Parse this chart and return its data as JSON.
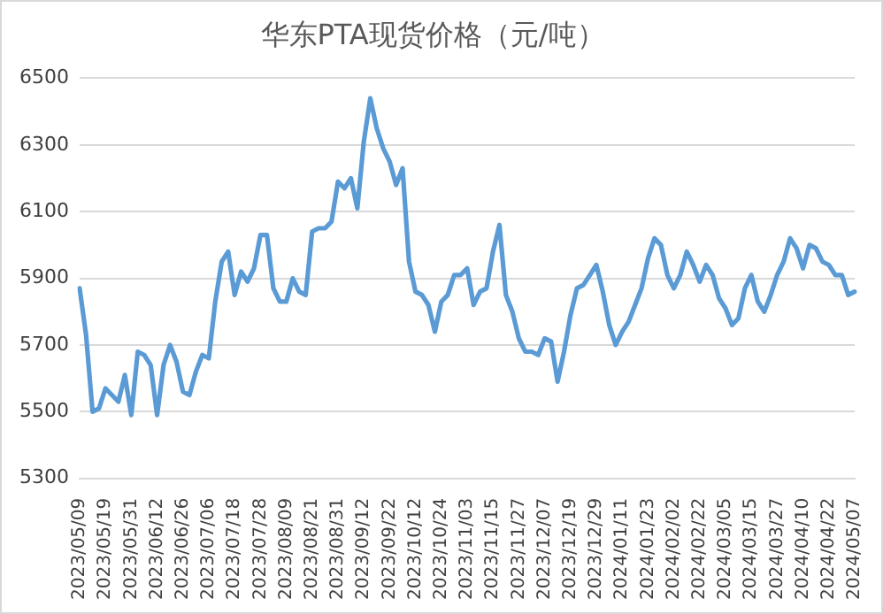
{
  "chart_data": {
    "type": "line",
    "title": "华东PTA现货价格（元/吨）",
    "categories": [
      "2023/05/09",
      null,
      null,
      null,
      "2023/05/19",
      null,
      null,
      null,
      "2023/05/31",
      null,
      null,
      null,
      "2023/06/12",
      null,
      null,
      null,
      "2023/06/26",
      null,
      null,
      null,
      "2023/07/06",
      null,
      null,
      null,
      "2023/07/18",
      null,
      null,
      null,
      "2023/07/28",
      null,
      null,
      null,
      "2023/08/09",
      null,
      null,
      null,
      "2023/08/21",
      null,
      null,
      null,
      "2023/08/31",
      null,
      null,
      null,
      "2023/09/12",
      null,
      null,
      null,
      "2023/09/22",
      null,
      null,
      null,
      "2023/10/12",
      null,
      null,
      null,
      "2023/10/24",
      null,
      null,
      null,
      "2023/11/03",
      null,
      null,
      null,
      "2023/11/15",
      null,
      null,
      null,
      "2023/11/27",
      null,
      null,
      null,
      "2023/12/07",
      null,
      null,
      null,
      "2023/12/19",
      null,
      null,
      null,
      "2023/12/29",
      null,
      null,
      null,
      "2024/01/11",
      null,
      null,
      null,
      "2024/01/23",
      null,
      null,
      null,
      "2024/02/02",
      null,
      null,
      null,
      "2024/02/22",
      null,
      null,
      null,
      "2024/03/05",
      null,
      null,
      null,
      "2024/03/15",
      null,
      null,
      null,
      "2024/03/27",
      null,
      null,
      null,
      "2024/04/10",
      null,
      null,
      null,
      "2024/04/22",
      null,
      null,
      null,
      "2024/05/07"
    ],
    "series": [
      {
        "color": "#5b9bd5",
        "values": [
          5870,
          5730,
          5500,
          5510,
          5570,
          5550,
          5530,
          5610,
          5490,
          5680,
          5670,
          5640,
          5490,
          5640,
          5700,
          5650,
          5560,
          5550,
          5620,
          5670,
          5660,
          5830,
          5950,
          5980,
          5850,
          5920,
          5890,
          5930,
          6030,
          6030,
          5870,
          5830,
          5830,
          5900,
          5860,
          5850,
          6040,
          6050,
          6050,
          6070,
          6190,
          6170,
          6200,
          6110,
          6310,
          6440,
          6350,
          6290,
          6250,
          6180,
          6230,
          5950,
          5860,
          5850,
          5820,
          5740,
          5830,
          5850,
          5910,
          5910,
          5930,
          5820,
          5860,
          5870,
          5980,
          6060,
          5850,
          5800,
          5720,
          5680,
          5680,
          5670,
          5720,
          5710,
          5590,
          5680,
          5790,
          5870,
          5880,
          5910,
          5940,
          5860,
          5760,
          5700,
          5740,
          5770,
          5820,
          5870,
          5960,
          6020,
          6000,
          5910,
          5870,
          5910,
          5980,
          5940,
          5890,
          5940,
          5910,
          5840,
          5810,
          5760,
          5780,
          5870,
          5910,
          5830,
          5800,
          5850,
          5910,
          5950,
          6020,
          5990,
          5930,
          6000,
          5990,
          5950,
          5940,
          5910,
          5910,
          5850,
          5860
        ]
      }
    ],
    "ylim": [
      5300,
      6500
    ],
    "yticks": [
      5300,
      5500,
      5700,
      5900,
      6100,
      6300,
      6500
    ],
    "grid": "y",
    "legend": false,
    "marker": "none",
    "line_style": "solid"
  }
}
